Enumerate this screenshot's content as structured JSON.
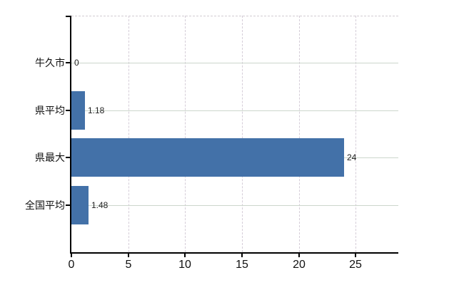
{
  "chart_data": {
    "type": "bar",
    "orientation": "horizontal",
    "title": "",
    "xlabel": "",
    "ylabel": "",
    "legend": "none",
    "grid": "on",
    "categories": [
      "牛久市",
      "県平均",
      "県最大",
      "全国平均"
    ],
    "values": [
      0,
      1.18,
      24,
      1.48
    ],
    "data_labels": [
      "0",
      "1.18",
      "24",
      "1.48"
    ],
    "x_tick_labels": [
      "0",
      "5",
      "10",
      "15",
      "20",
      "25"
    ],
    "x_tick_values": [
      0,
      5,
      10,
      15,
      20,
      25
    ],
    "xlim": [
      0,
      28.75
    ],
    "style": {
      "bar_color": "#4371a8",
      "h_grid_color": "#ccd6cc",
      "v_grid_color": "#d5cdd8",
      "top_border_color": "#d2cdd2",
      "axis_color": "#000000",
      "text_color": "#111111",
      "value_label_color": "#222222",
      "background_color": "#ffffff"
    }
  }
}
